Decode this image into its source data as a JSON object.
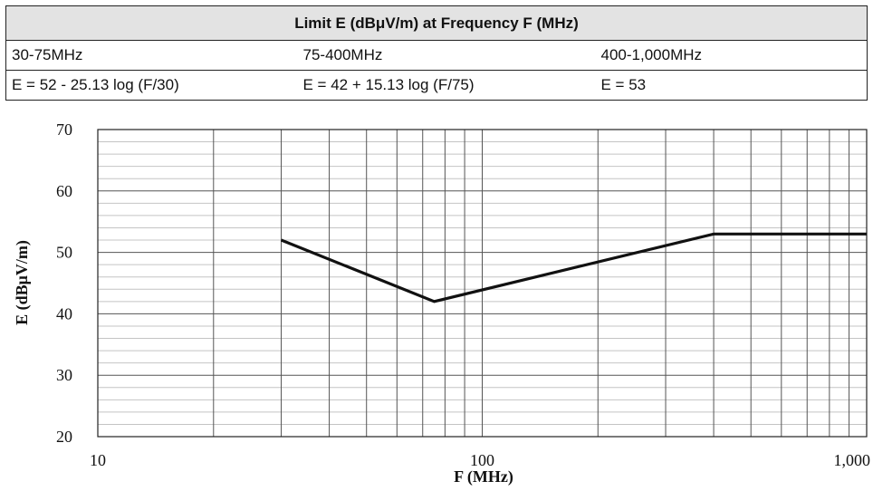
{
  "table": {
    "title": "Limit E (dBμV/m) at Frequency F (MHz)",
    "ranges": [
      "30-75MHz",
      "75-400MHz",
      "400-1,000MHz"
    ],
    "formulas": [
      "E = 52 - 25.13 log (F/30)",
      "E = 42 + 15.13 log (F/75)",
      "E = 53"
    ]
  },
  "chart_data": {
    "type": "line",
    "xscale": "log",
    "xlim": [
      10,
      1000
    ],
    "ylim": [
      20,
      70
    ],
    "xlabel": "F (MHz)",
    "ylabel": "E (dBμV/m)",
    "x_ticks": [
      10,
      100,
      1000
    ],
    "x_tick_labels": [
      "10",
      "100",
      "1,000"
    ],
    "y_ticks": [
      20,
      30,
      40,
      50,
      60,
      70
    ],
    "y_tick_labels": [
      "20",
      "30",
      "40",
      "50",
      "60",
      "70"
    ],
    "grid": true,
    "series": [
      {
        "x": [
          30,
          75,
          400,
          1000
        ],
        "y": [
          52,
          42,
          53,
          53
        ]
      }
    ]
  }
}
